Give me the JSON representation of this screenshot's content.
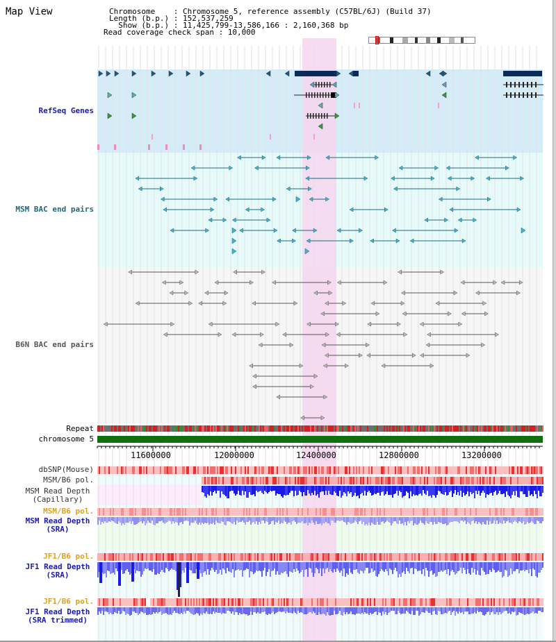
{
  "header": {
    "title": "Map View",
    "lines": [
      "Chromosome    : Chromosome 5, reference assembly (C57BL/6J) (Build 37)",
      "Length (b.p.) : 152,537,259",
      "  Show (b.p.) : 11,425,799-13,586,166 : 2,160,368 bp",
      "Read coverage check span : 10,000"
    ]
  },
  "tracks": {
    "refseq_genes": "RefSeq Genes",
    "msm_bac": "MSM BAC end pairs",
    "b6n_bac": "B6N BAC end pairs",
    "repeat": "Repeat",
    "chromosome": "chromosome 5",
    "dbsnp": "dbSNP(Mouse)",
    "msm_b6_pol": "MSM/B6 pol.",
    "msm_depth_cap_1": "MSM Read Depth",
    "msm_depth_cap_2": "(Capillary)",
    "msm_b6_pol_2": "MSM/B6 pol.",
    "msm_depth_sra_1": "MSM Read Depth",
    "msm_depth_sra_2": "(SRA)",
    "jf1_b6_pol": "JF1/B6 pol.",
    "jf1_depth_sra_1": "JF1 Read Depth",
    "jf1_depth_sra_2": "(SRA)",
    "jf1_b6_pol_2": "JF1/B6 pol.",
    "jf1_depth_trim_1": "JF1 Read Depth",
    "jf1_depth_trim_2": "(SRA trimmed)"
  },
  "axis": {
    "ticks": [
      "11600000",
      "12000000",
      "12400000",
      "12800000",
      "13200000"
    ]
  },
  "colors": {
    "refseq_bg": "#d4ecf8",
    "msm_bg": "#e6fafa",
    "b6n_bg": "#f6f6f6",
    "highlight": "#f6d6ee",
    "chromosome_bar": "#107010",
    "depth_blue": "#1a1ae6",
    "depth_light": "#8c8cf0",
    "pol_red": "#f06060",
    "label_blue": "#1a1ab0",
    "label_teal": "#206878",
    "label_orange": "#e0a020"
  }
}
